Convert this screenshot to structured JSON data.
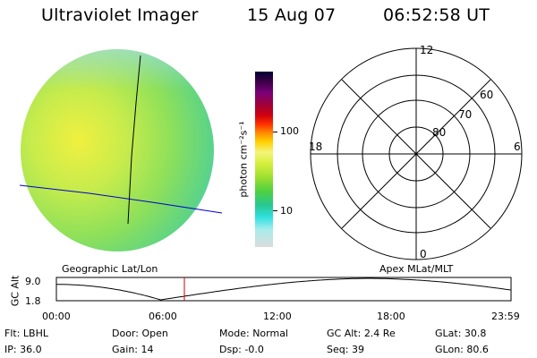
{
  "header": {
    "instrument": "Ultraviolet Imager",
    "date": "15 Aug 07",
    "time": "06:52:58 UT"
  },
  "colorbar": {
    "unit_label": "photon cm⁻²s⁻¹",
    "ticks": [
      "100",
      "10"
    ],
    "scale": "log",
    "colors": [
      "#000030",
      "#40004a",
      "#7a007a",
      "#a80030",
      "#d00010",
      "#ff3000",
      "#ff8c00",
      "#ffd000",
      "#f4f47a",
      "#d8f040",
      "#a0e030",
      "#50d040",
      "#28c890",
      "#30e0e0",
      "#a8ecec",
      "#dcdcdc"
    ]
  },
  "globe": {
    "colors": [
      "#f0f040",
      "#c8ec4c",
      "#8ee05a",
      "#5cd486",
      "#58c8d8"
    ]
  },
  "polar_plot": {
    "lat_labels": [
      "60",
      "70",
      "80"
    ],
    "mlt_labels": {
      "top": "12",
      "right": "6",
      "bottom": "0",
      "left": "18"
    }
  },
  "coords": {
    "left_label": "Geographic Lat/Lon",
    "right_label": "Apex MLat/MLT"
  },
  "gc_alt_plot": {
    "axis_label": "GC Alt",
    "y_ticks": [
      "9.0",
      "1.8"
    ],
    "x_ticks": [
      "00:00",
      "06:00",
      "12:00",
      "18:00",
      "23:59"
    ],
    "marker_time": "06:52:58",
    "marker_color": "#cc0000"
  },
  "status": {
    "flt": {
      "label": "Flt:",
      "value": "LBHL"
    },
    "ip": {
      "label": "IP:",
      "value": "36.0"
    },
    "door": {
      "label": "Door:",
      "value": "Open"
    },
    "gain": {
      "label": "Gain:",
      "value": "14"
    },
    "mode": {
      "label": "Mode:",
      "value": "Normal"
    },
    "dsp": {
      "label": "Dsp:",
      "value": "-0.0"
    },
    "gcalt": {
      "label": "GC Alt:",
      "value": "2.4 Re"
    },
    "seq": {
      "label": "Seq:",
      "value": "39"
    },
    "glat": {
      "label": "GLat:",
      "value": "30.8"
    },
    "glon": {
      "label": "GLon:",
      "value": "80.6"
    }
  }
}
